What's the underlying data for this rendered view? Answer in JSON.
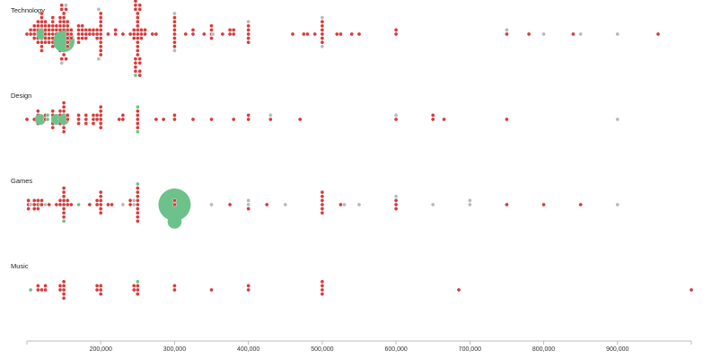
{
  "colors": {
    "success": "#6cc28a",
    "failed": "#d93a3a",
    "canceled": "#b9b9b9",
    "axis": "#bbbbbb",
    "background": "#ffffff"
  },
  "chart_data": {
    "type": "scatter",
    "subtype": "beeswarm",
    "title": "",
    "xlabel": "",
    "ylabel": "",
    "xlim": [
      100000,
      1000000
    ],
    "x_ticks": [
      200000,
      300000,
      400000,
      500000,
      600000,
      700000,
      800000,
      900000
    ],
    "x_tick_labels": [
      "200,000",
      "300,000",
      "400,000",
      "500,000",
      "600,000",
      "700,000",
      "800,000",
      "900,000"
    ],
    "grid": false,
    "legend": "none",
    "rows": [
      {
        "category": "Technology",
        "points": [
          {
            "x": 100000,
            "n": 1,
            "s": "failed"
          },
          {
            "x": 105000,
            "n": 2,
            "s": "failed"
          },
          {
            "x": 110000,
            "n": 4,
            "s": "failed"
          },
          {
            "x": 115000,
            "n": 6,
            "s": "failed"
          },
          {
            "x": 118000,
            "n": 3,
            "s": "success"
          },
          {
            "x": 120000,
            "n": 10,
            "s": "failed"
          },
          {
            "x": 120000,
            "n": 1,
            "s": "success",
            "big": 1
          },
          {
            "x": 125000,
            "n": 6,
            "s": "failed"
          },
          {
            "x": 130000,
            "n": 5,
            "s": "failed"
          },
          {
            "x": 135000,
            "n": 8,
            "s": "failed"
          },
          {
            "x": 140000,
            "n": 5,
            "s": "failed"
          },
          {
            "x": 145000,
            "n": 9,
            "s": "failed"
          },
          {
            "x": 150000,
            "n": 16,
            "s": "failed"
          },
          {
            "x": 150000,
            "n": 1,
            "s": "success",
            "big": 2
          },
          {
            "x": 150000,
            "n": 2,
            "s": "canceled"
          },
          {
            "x": 155000,
            "n": 7,
            "s": "failed"
          },
          {
            "x": 160000,
            "n": 3,
            "s": "failed"
          },
          {
            "x": 170000,
            "n": 5,
            "s": "failed"
          },
          {
            "x": 175000,
            "n": 4,
            "s": "failed"
          },
          {
            "x": 180000,
            "n": 3,
            "s": "failed"
          },
          {
            "x": 185000,
            "n": 2,
            "s": "failed"
          },
          {
            "x": 190000,
            "n": 2,
            "s": "failed"
          },
          {
            "x": 195000,
            "n": 3,
            "s": "failed"
          },
          {
            "x": 200000,
            "n": 11,
            "s": "failed"
          },
          {
            "x": 200000,
            "n": 2,
            "s": "canceled"
          },
          {
            "x": 210000,
            "n": 1,
            "s": "failed"
          },
          {
            "x": 220000,
            "n": 2,
            "s": "failed"
          },
          {
            "x": 230000,
            "n": 1,
            "s": "failed"
          },
          {
            "x": 240000,
            "n": 1,
            "s": "failed"
          },
          {
            "x": 245000,
            "n": 3,
            "s": "failed"
          },
          {
            "x": 250000,
            "n": 28,
            "s": "failed"
          },
          {
            "x": 250000,
            "n": 2,
            "s": "success"
          },
          {
            "x": 255000,
            "n": 3,
            "s": "failed"
          },
          {
            "x": 260000,
            "n": 2,
            "s": "failed"
          },
          {
            "x": 270000,
            "n": 1,
            "s": "failed"
          },
          {
            "x": 275000,
            "n": 1,
            "s": "failed"
          },
          {
            "x": 300000,
            "n": 8,
            "s": "failed"
          },
          {
            "x": 300000,
            "n": 2,
            "s": "canceled"
          },
          {
            "x": 315000,
            "n": 1,
            "s": "failed"
          },
          {
            "x": 325000,
            "n": 2,
            "s": "failed"
          },
          {
            "x": 340000,
            "n": 1,
            "s": "failed"
          },
          {
            "x": 350000,
            "n": 4,
            "s": "failed"
          },
          {
            "x": 352000,
            "n": 1,
            "s": "canceled"
          },
          {
            "x": 365000,
            "n": 1,
            "s": "failed"
          },
          {
            "x": 375000,
            "n": 2,
            "s": "failed"
          },
          {
            "x": 380000,
            "n": 2,
            "s": "failed"
          },
          {
            "x": 400000,
            "n": 5,
            "s": "failed"
          },
          {
            "x": 400000,
            "n": 1,
            "s": "canceled"
          },
          {
            "x": 460000,
            "n": 1,
            "s": "failed"
          },
          {
            "x": 475000,
            "n": 1,
            "s": "failed"
          },
          {
            "x": 480000,
            "n": 1,
            "s": "failed"
          },
          {
            "x": 490000,
            "n": 1,
            "s": "failed"
          },
          {
            "x": 500000,
            "n": 6,
            "s": "failed"
          },
          {
            "x": 500000,
            "n": 2,
            "s": "canceled"
          },
          {
            "x": 520000,
            "n": 1,
            "s": "failed"
          },
          {
            "x": 525000,
            "n": 1,
            "s": "failed"
          },
          {
            "x": 540000,
            "n": 1,
            "s": "failed"
          },
          {
            "x": 550000,
            "n": 1,
            "s": "failed"
          },
          {
            "x": 600000,
            "n": 2,
            "s": "failed"
          },
          {
            "x": 750000,
            "n": 1,
            "s": "failed"
          },
          {
            "x": 750000,
            "n": 1,
            "s": "canceled"
          },
          {
            "x": 780000,
            "n": 1,
            "s": "failed"
          },
          {
            "x": 800000,
            "n": 1,
            "s": "canceled"
          },
          {
            "x": 840000,
            "n": 1,
            "s": "failed"
          },
          {
            "x": 850000,
            "n": 1,
            "s": "canceled"
          },
          {
            "x": 900000,
            "n": 1,
            "s": "canceled"
          },
          {
            "x": 955000,
            "n": 1,
            "s": "failed"
          }
        ]
      },
      {
        "category": "Design",
        "points": [
          {
            "x": 100000,
            "n": 1,
            "s": "failed"
          },
          {
            "x": 110000,
            "n": 1,
            "s": "failed"
          },
          {
            "x": 115000,
            "n": 4,
            "s": "failed"
          },
          {
            "x": 118000,
            "n": 1,
            "s": "success",
            "big": 1
          },
          {
            "x": 125000,
            "n": 2,
            "s": "failed"
          },
          {
            "x": 128000,
            "n": 2,
            "s": "success"
          },
          {
            "x": 135000,
            "n": 5,
            "s": "failed"
          },
          {
            "x": 140000,
            "n": 1,
            "s": "success",
            "big": 1
          },
          {
            "x": 145000,
            "n": 4,
            "s": "failed"
          },
          {
            "x": 150000,
            "n": 8,
            "s": "failed"
          },
          {
            "x": 150000,
            "n": 1,
            "s": "success",
            "big": 1
          },
          {
            "x": 155000,
            "n": 2,
            "s": "failed"
          },
          {
            "x": 170000,
            "n": 3,
            "s": "failed"
          },
          {
            "x": 180000,
            "n": 3,
            "s": "failed"
          },
          {
            "x": 190000,
            "n": 3,
            "s": "failed"
          },
          {
            "x": 195000,
            "n": 2,
            "s": "failed"
          },
          {
            "x": 200000,
            "n": 6,
            "s": "failed"
          },
          {
            "x": 225000,
            "n": 1,
            "s": "failed"
          },
          {
            "x": 230000,
            "n": 2,
            "s": "failed"
          },
          {
            "x": 250000,
            "n": 5,
            "s": "failed"
          },
          {
            "x": 250000,
            "n": 2,
            "s": "success"
          },
          {
            "x": 275000,
            "n": 1,
            "s": "failed"
          },
          {
            "x": 285000,
            "n": 1,
            "s": "failed"
          },
          {
            "x": 300000,
            "n": 2,
            "s": "failed"
          },
          {
            "x": 325000,
            "n": 1,
            "s": "failed"
          },
          {
            "x": 350000,
            "n": 1,
            "s": "failed"
          },
          {
            "x": 380000,
            "n": 1,
            "s": "failed"
          },
          {
            "x": 400000,
            "n": 2,
            "s": "failed"
          },
          {
            "x": 430000,
            "n": 1,
            "s": "failed"
          },
          {
            "x": 430000,
            "n": 1,
            "s": "canceled"
          },
          {
            "x": 470000,
            "n": 1,
            "s": "failed"
          },
          {
            "x": 600000,
            "n": 1,
            "s": "failed"
          },
          {
            "x": 600000,
            "n": 1,
            "s": "canceled"
          },
          {
            "x": 650000,
            "n": 2,
            "s": "failed"
          },
          {
            "x": 665000,
            "n": 1,
            "s": "failed"
          },
          {
            "x": 750000,
            "n": 1,
            "s": "failed"
          },
          {
            "x": 900000,
            "n": 1,
            "s": "canceled"
          }
        ]
      },
      {
        "category": "Games",
        "points": [
          {
            "x": 102000,
            "n": 3,
            "s": "failed"
          },
          {
            "x": 105000,
            "n": 1,
            "s": "canceled"
          },
          {
            "x": 110000,
            "n": 3,
            "s": "failed"
          },
          {
            "x": 115000,
            "n": 3,
            "s": "failed"
          },
          {
            "x": 118000,
            "n": 1,
            "s": "success"
          },
          {
            "x": 120000,
            "n": 2,
            "s": "failed"
          },
          {
            "x": 125000,
            "n": 1,
            "s": "canceled"
          },
          {
            "x": 130000,
            "n": 1,
            "s": "failed"
          },
          {
            "x": 140000,
            "n": 1,
            "s": "failed"
          },
          {
            "x": 145000,
            "n": 2,
            "s": "failed"
          },
          {
            "x": 150000,
            "n": 8,
            "s": "failed"
          },
          {
            "x": 150000,
            "n": 1,
            "s": "success"
          },
          {
            "x": 155000,
            "n": 2,
            "s": "failed"
          },
          {
            "x": 160000,
            "n": 1,
            "s": "failed"
          },
          {
            "x": 170000,
            "n": 1,
            "s": "success"
          },
          {
            "x": 185000,
            "n": 1,
            "s": "failed"
          },
          {
            "x": 195000,
            "n": 2,
            "s": "failed"
          },
          {
            "x": 200000,
            "n": 6,
            "s": "failed"
          },
          {
            "x": 210000,
            "n": 1,
            "s": "failed"
          },
          {
            "x": 215000,
            "n": 1,
            "s": "failed"
          },
          {
            "x": 230000,
            "n": 1,
            "s": "canceled"
          },
          {
            "x": 240000,
            "n": 2,
            "s": "failed"
          },
          {
            "x": 245000,
            "n": 2,
            "s": "canceled"
          },
          {
            "x": 250000,
            "n": 9,
            "s": "failed"
          },
          {
            "x": 250000,
            "n": 1,
            "s": "success"
          },
          {
            "x": 300000,
            "n": 1,
            "s": "success",
            "big": 3
          },
          {
            "x": 300000,
            "n": 1,
            "s": "success",
            "big": 1.3
          },
          {
            "x": 300000,
            "n": 2,
            "s": "failed"
          },
          {
            "x": 350000,
            "n": 1,
            "s": "canceled"
          },
          {
            "x": 375000,
            "n": 1,
            "s": "failed"
          },
          {
            "x": 400000,
            "n": 2,
            "s": "canceled"
          },
          {
            "x": 400000,
            "n": 1,
            "s": "failed"
          },
          {
            "x": 425000,
            "n": 1,
            "s": "failed"
          },
          {
            "x": 450000,
            "n": 1,
            "s": "canceled"
          },
          {
            "x": 500000,
            "n": 6,
            "s": "failed"
          },
          {
            "x": 525000,
            "n": 1,
            "s": "failed"
          },
          {
            "x": 530000,
            "n": 1,
            "s": "canceled"
          },
          {
            "x": 550000,
            "n": 1,
            "s": "canceled"
          },
          {
            "x": 600000,
            "n": 3,
            "s": "failed"
          },
          {
            "x": 600000,
            "n": 1,
            "s": "canceled"
          },
          {
            "x": 650000,
            "n": 1,
            "s": "canceled"
          },
          {
            "x": 700000,
            "n": 2,
            "s": "canceled"
          },
          {
            "x": 750000,
            "n": 1,
            "s": "failed"
          },
          {
            "x": 800000,
            "n": 1,
            "s": "failed"
          },
          {
            "x": 850000,
            "n": 1,
            "s": "failed"
          },
          {
            "x": 900000,
            "n": 1,
            "s": "canceled"
          }
        ]
      },
      {
        "category": "Music",
        "points": [
          {
            "x": 105000,
            "n": 1,
            "s": "success"
          },
          {
            "x": 115000,
            "n": 2,
            "s": "failed"
          },
          {
            "x": 120000,
            "n": 1,
            "s": "failed"
          },
          {
            "x": 125000,
            "n": 2,
            "s": "failed"
          },
          {
            "x": 145000,
            "n": 2,
            "s": "failed"
          },
          {
            "x": 150000,
            "n": 5,
            "s": "failed"
          },
          {
            "x": 195000,
            "n": 2,
            "s": "failed"
          },
          {
            "x": 200000,
            "n": 3,
            "s": "failed"
          },
          {
            "x": 245000,
            "n": 2,
            "s": "failed"
          },
          {
            "x": 250000,
            "n": 3,
            "s": "failed"
          },
          {
            "x": 250000,
            "n": 1,
            "s": "success"
          },
          {
            "x": 300000,
            "n": 2,
            "s": "failed"
          },
          {
            "x": 350000,
            "n": 1,
            "s": "failed"
          },
          {
            "x": 400000,
            "n": 2,
            "s": "failed"
          },
          {
            "x": 500000,
            "n": 4,
            "s": "failed"
          },
          {
            "x": 685000,
            "n": 1,
            "s": "failed"
          },
          {
            "x": 1000000,
            "n": 1,
            "s": "failed"
          }
        ]
      }
    ]
  }
}
